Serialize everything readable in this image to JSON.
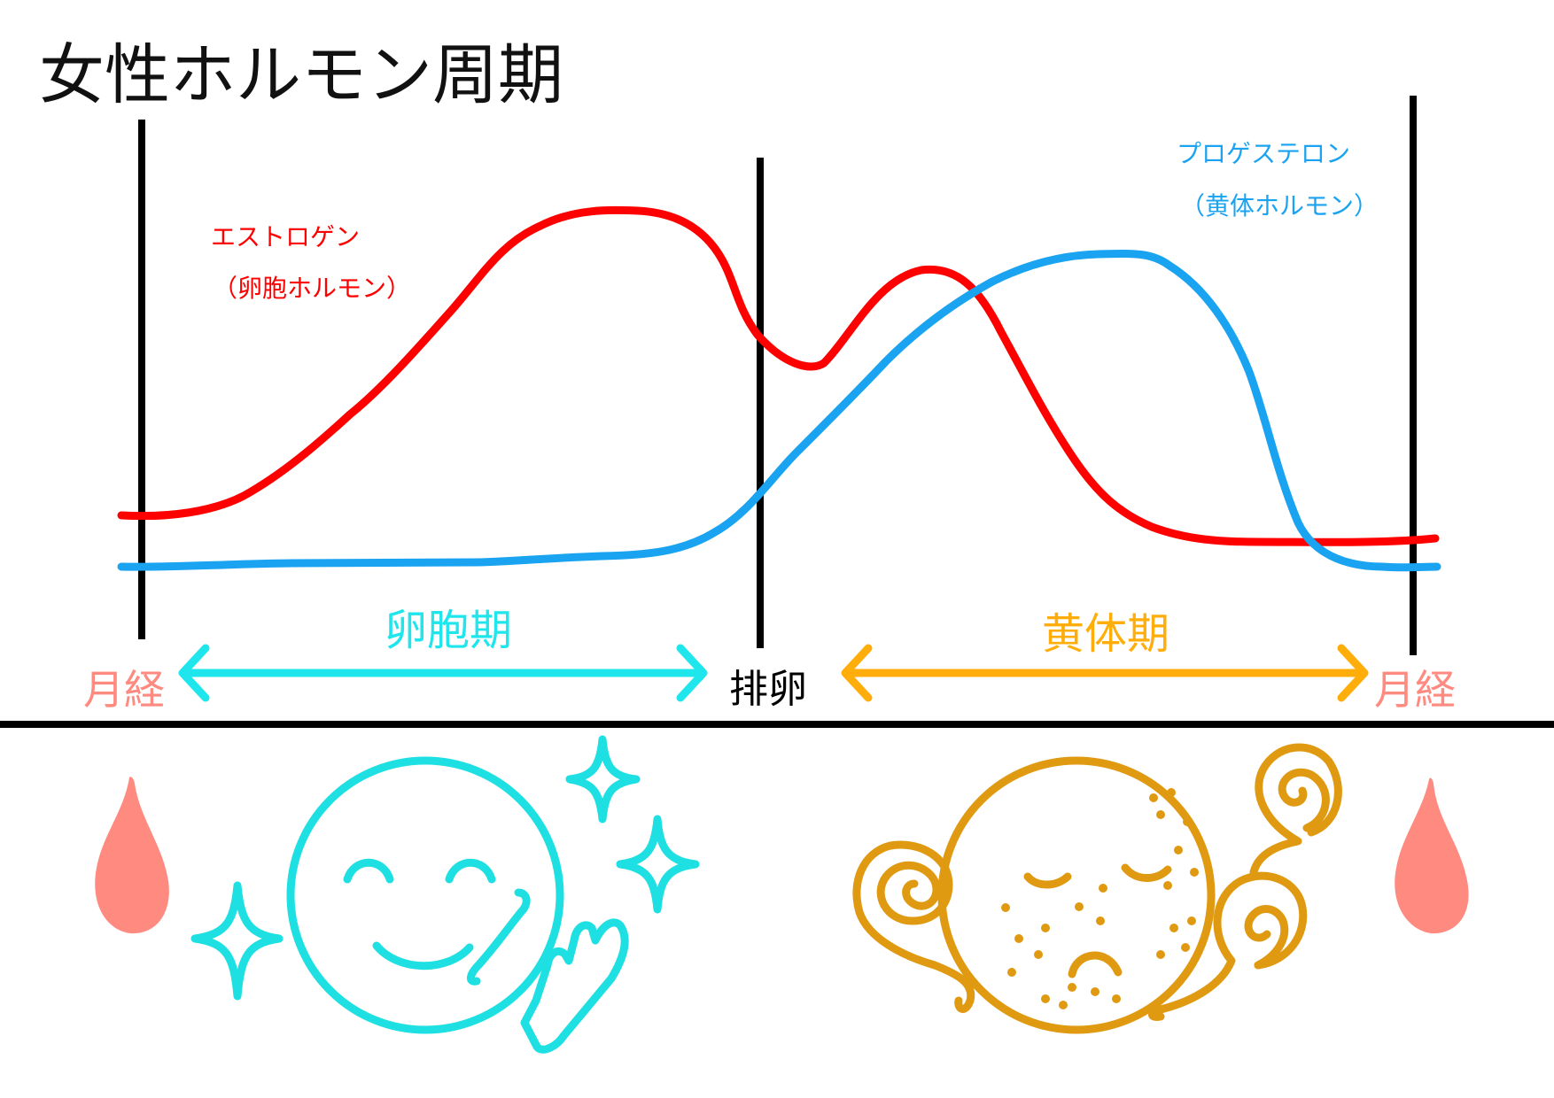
{
  "title": "女性ホルモン周期",
  "estrogen": {
    "name": "エストロゲン",
    "alias": "（卵胞ホルモン）",
    "color": "#ff0000"
  },
  "progesterone": {
    "name": "プロゲステロン",
    "alias": "（黄体ホルモン）",
    "color": "#1aa3f0"
  },
  "phases": {
    "follicular": {
      "label": "卵胞期",
      "color": "#1ee6ec"
    },
    "ovulation": {
      "label": "排卵",
      "color": "#000000"
    },
    "luteal": {
      "label": "黄体期",
      "color": "#ffad0a"
    },
    "menstruation_start": {
      "label": "月経",
      "color": "#ff8a80"
    },
    "menstruation_end": {
      "label": "月経",
      "color": "#ff8a80"
    }
  },
  "illustrations": {
    "follicular_mood": "happy-sparkle-face-icon",
    "luteal_mood": "tired-spotty-face-icon",
    "period": "blood-drop-icon",
    "follicular_color": "#1ee0e2",
    "luteal_color": "#e09a12",
    "drop_color": "#ff8a80"
  }
}
